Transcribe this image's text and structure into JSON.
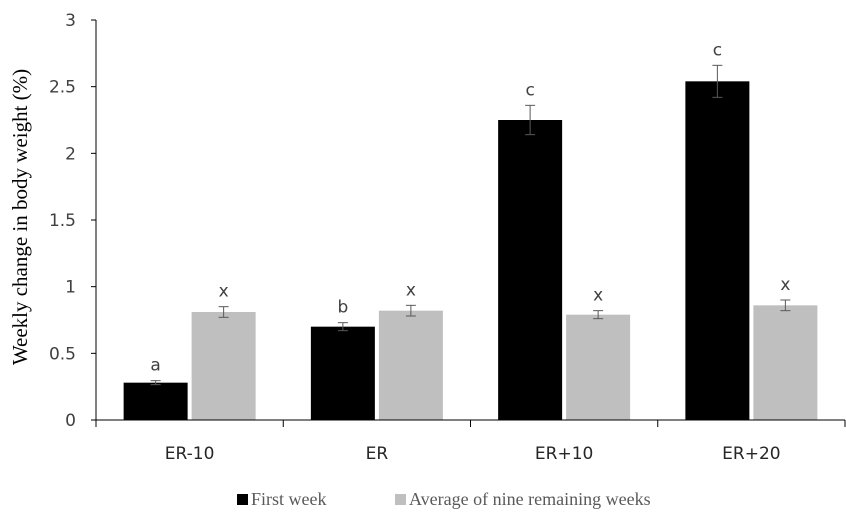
{
  "chart_data": {
    "type": "bar",
    "title": "",
    "xlabel": "",
    "ylabel": "Weekly change in body weight (%)",
    "ylim": [
      0,
      3
    ],
    "yticks": [
      "0",
      "0.5",
      "1",
      "1.5",
      "2",
      "2.5",
      "3"
    ],
    "categories": [
      "ER-10",
      "ER",
      "ER+10",
      "ER+20"
    ],
    "series": [
      {
        "name": "First week",
        "color": "#000000",
        "values": [
          0.28,
          0.7,
          2.25,
          2.54
        ],
        "errors": [
          0.015,
          0.03,
          0.11,
          0.12
        ],
        "labels": [
          "a",
          "b",
          "c",
          "c"
        ]
      },
      {
        "name": "Average of nine remaining weeks",
        "color": "#bfbfbf",
        "values": [
          0.81,
          0.82,
          0.79,
          0.86
        ],
        "errors": [
          0.04,
          0.04,
          0.03,
          0.04
        ],
        "labels": [
          "x",
          "x",
          "x",
          "x"
        ]
      }
    ],
    "legend_position": "bottom",
    "grid": false
  }
}
